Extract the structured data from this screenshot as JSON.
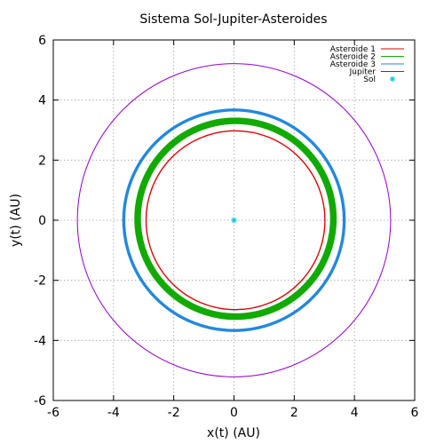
{
  "chart_data": {
    "type": "line",
    "title": "Sistema Sol-Jupiter-Asteroides",
    "xlabel": "x(t) (AU)",
    "ylabel": "y(t) (AU)",
    "xlim": [
      -6,
      6
    ],
    "ylim": [
      -6,
      6
    ],
    "xticks": [
      -6,
      -4,
      -2,
      0,
      2,
      4,
      6
    ],
    "yticks": [
      -6,
      -4,
      -2,
      0,
      2,
      4,
      6
    ],
    "grid": true,
    "legend_position": "top-right",
    "series": [
      {
        "name": "Asteroide 1",
        "color": "#dd0000",
        "shape": "orbit",
        "center": [
          0.05,
          0
        ],
        "radius": 2.97,
        "thickness": 0.04
      },
      {
        "name": "Asteroide 2",
        "color": "#11aa00",
        "shape": "orbit",
        "center": [
          0.05,
          0.05
        ],
        "radius": 3.25,
        "thickness": 0.22
      },
      {
        "name": "Asteroide 3",
        "color": "#2288dd",
        "shape": "orbit",
        "center": [
          0,
          0
        ],
        "radius": 3.66,
        "thickness": 0.1
      },
      {
        "name": "Jupiter",
        "color": "#9400d3",
        "shape": "orbit",
        "center": [
          0,
          0
        ],
        "radius": 5.2,
        "thickness": 0.03
      },
      {
        "name": "Sol",
        "color": "#00cccc",
        "shape": "point",
        "x": [
          0
        ],
        "y": [
          0
        ]
      }
    ]
  }
}
